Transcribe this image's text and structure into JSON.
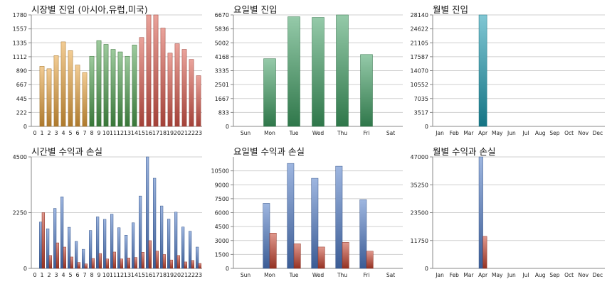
{
  "chart_data": [
    {
      "id": "market",
      "type": "bar",
      "title": "시장별 진입 (아시아,유럽,미국)",
      "categories": [
        "0",
        "1",
        "2",
        "3",
        "4",
        "5",
        "6",
        "7",
        "8",
        "9",
        "10",
        "11",
        "12",
        "13",
        "14",
        "15",
        "16",
        "17",
        "18",
        "19",
        "20",
        "21",
        "22",
        "23"
      ],
      "values": [
        0,
        960,
        920,
        1130,
        1350,
        1210,
        980,
        860,
        1120,
        1370,
        1310,
        1230,
        1190,
        1120,
        1300,
        1420,
        1780,
        1780,
        1570,
        1170,
        1320,
        1230,
        1070,
        810
      ],
      "yticks": [
        "0",
        "222",
        "445",
        "667",
        "890",
        "1112",
        "1335",
        "1557",
        "1780"
      ],
      "ylim": [
        0,
        1780
      ],
      "colors": [
        "#e8a33c",
        "#e8a33c",
        "#e8a33c",
        "#e8a33c",
        "#e8a33c",
        "#e8a33c",
        "#e8a33c",
        "#e8a33c",
        "#4c9f4c",
        "#4c9f4c",
        "#4c9f4c",
        "#4c9f4c",
        "#4c9f4c",
        "#4c9f4c",
        "#4c9f4c",
        "#d9574a",
        "#d9574a",
        "#d9574a",
        "#d9574a",
        "#d9574a",
        "#d9574a",
        "#d9574a",
        "#d9574a",
        "#d9574a"
      ]
    },
    {
      "id": "weekday-entry",
      "type": "bar",
      "title": "요일별 진입",
      "categories": [
        "Sun",
        "Mon",
        "Tue",
        "Wed",
        "Thu",
        "Fri",
        "Sat"
      ],
      "values": [
        0,
        4050,
        6560,
        6520,
        6670,
        4300,
        0
      ],
      "yticks": [
        "0",
        "833",
        "1667",
        "2501",
        "3335",
        "4168",
        "5002",
        "5836",
        "6670"
      ],
      "ylim": [
        0,
        6670
      ],
      "colors": [
        "#3f9f63"
      ]
    },
    {
      "id": "monthly-entry",
      "type": "bar",
      "title": "월별 진입",
      "categories": [
        "Jan",
        "Feb",
        "Mar",
        "Apr",
        "May",
        "Jun",
        "Jul",
        "Aug",
        "Sep",
        "Oct",
        "Nov",
        "Dec"
      ],
      "values": [
        0,
        0,
        0,
        28140,
        0,
        0,
        0,
        0,
        0,
        0,
        0,
        0
      ],
      "yticks": [
        "0",
        "3517",
        "7035",
        "10552",
        "14070",
        "17587",
        "21105",
        "24622",
        "28140"
      ],
      "ylim": [
        0,
        28140
      ],
      "colors": [
        "#1a9ab0"
      ]
    },
    {
      "id": "hourly-pnl",
      "type": "bar",
      "title": "시간별 수익과 손실",
      "categories": [
        "0",
        "1",
        "2",
        "3",
        "4",
        "5",
        "6",
        "7",
        "8",
        "9",
        "10",
        "11",
        "12",
        "13",
        "14",
        "15",
        "16",
        "17",
        "18",
        "19",
        "20",
        "21",
        "22",
        "23"
      ],
      "series": [
        {
          "values": [
            0,
            1870,
            1600,
            2420,
            2890,
            1660,
            1090,
            770,
            1530,
            2080,
            1980,
            2190,
            1640,
            1340,
            1840,
            2920,
            4500,
            3640,
            2520,
            1990,
            2270,
            1670,
            1500,
            860
          ]
        },
        {
          "values": [
            0,
            2250,
            520,
            1030,
            860,
            460,
            240,
            180,
            400,
            600,
            380,
            660,
            380,
            420,
            440,
            650,
            1120,
            700,
            560,
            340,
            520,
            260,
            320,
            200
          ]
        }
      ],
      "yticks": [
        "0",
        "2250",
        "4500"
      ],
      "ylim": [
        0,
        4500
      ],
      "colors": [
        "#4f7bc6",
        "#c6432f"
      ]
    },
    {
      "id": "weekday-pnl",
      "type": "bar",
      "title": "요일별 수익과 손실",
      "categories": [
        "Sun",
        "Mon",
        "Tue",
        "Wed",
        "Thu",
        "Fri",
        "Sat"
      ],
      "series": [
        {
          "values": [
            0,
            7000,
            11300,
            9700,
            11000,
            7400,
            0
          ]
        },
        {
          "values": [
            0,
            3800,
            2650,
            2300,
            2800,
            1850,
            0
          ]
        }
      ],
      "yticks": [
        "0",
        "1500",
        "3000",
        "4500",
        "6000",
        "7500",
        "9000",
        "10500"
      ],
      "ylim": [
        0,
        12000
      ],
      "colors": [
        "#4f7bc6",
        "#c6432f"
      ]
    },
    {
      "id": "monthly-pnl",
      "type": "bar",
      "title": "월별 수익과 손실",
      "categories": [
        "Jan",
        "Feb",
        "Mar",
        "Apr",
        "May",
        "Jun",
        "Jul",
        "Aug",
        "Sep",
        "Oct",
        "Nov",
        "Dec"
      ],
      "series": [
        {
          "values": [
            0,
            0,
            0,
            47000,
            0,
            0,
            0,
            0,
            0,
            0,
            0,
            0
          ]
        },
        {
          "values": [
            0,
            0,
            0,
            13500,
            0,
            0,
            0,
            0,
            0,
            0,
            0,
            0
          ]
        }
      ],
      "yticks": [
        "0",
        "11750",
        "23500",
        "35250",
        "47000"
      ],
      "ylim": [
        0,
        47000
      ],
      "colors": [
        "#4f7bc6",
        "#c6432f"
      ]
    }
  ]
}
